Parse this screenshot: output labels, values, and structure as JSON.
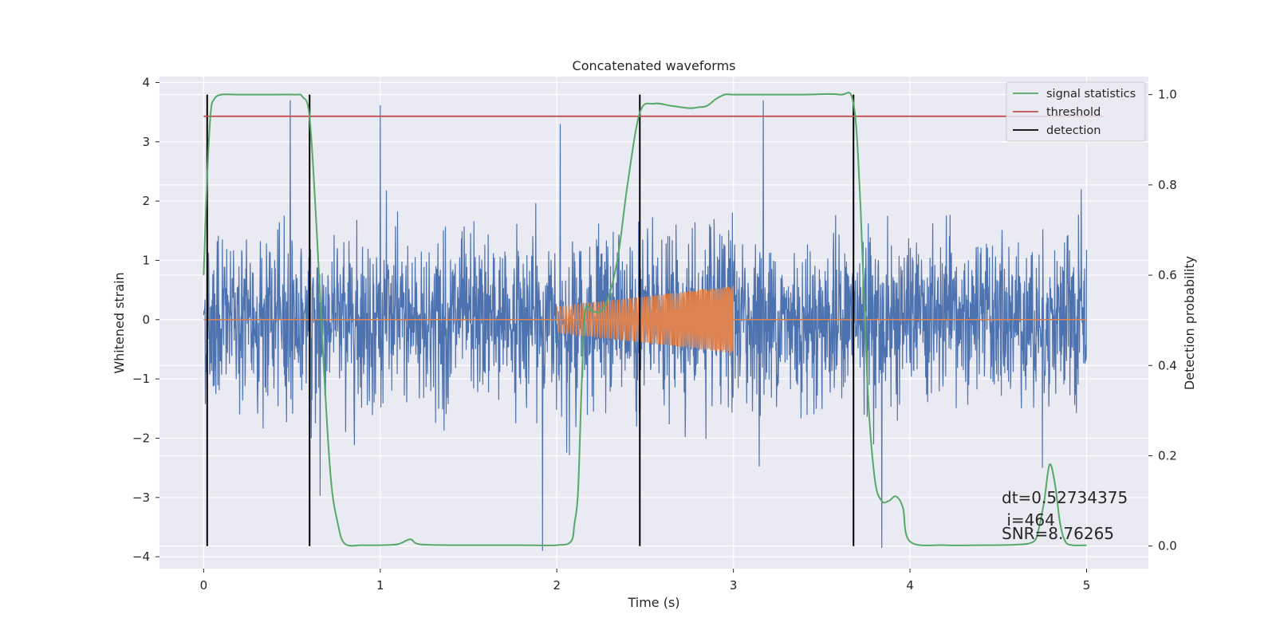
{
  "chart_data": {
    "type": "line",
    "title": "Concatenated waveforms",
    "xlabel": "Time (s)",
    "ylabel": "Whitened strain",
    "ylabel_right": "Detection probability",
    "xlim": [
      -0.25,
      5.35
    ],
    "ylim": [
      -4.2,
      4.1
    ],
    "ylim_right": [
      -0.05,
      1.04
    ],
    "x_ticks": [
      0,
      1,
      2,
      3,
      4,
      5
    ],
    "y_ticks": [
      -4,
      -3,
      -2,
      -1,
      0,
      1,
      2,
      3,
      4
    ],
    "y_ticks_right": [
      0.0,
      0.2,
      0.4,
      0.6,
      0.8,
      1.0
    ],
    "x_tick_labels": [
      "0",
      "1",
      "2",
      "3",
      "4",
      "5"
    ],
    "y_tick_labels": [
      "−4",
      "−3",
      "−2",
      "−1",
      "0",
      "1",
      "2",
      "3",
      "4"
    ],
    "y_tick_labels_right": [
      "0.0",
      "0.2",
      "0.4",
      "0.6",
      "0.8",
      "1.0"
    ],
    "grid": true,
    "legend_position": "top-right",
    "noise_series": {
      "color": "#4c72b0",
      "x_range": [
        0,
        5
      ],
      "typical_amplitude": 1.6,
      "spikes": [
        [
          0.49,
          3.7
        ],
        [
          1.0,
          3.62
        ],
        [
          1.92,
          -3.9
        ],
        [
          2.02,
          3.3
        ],
        [
          3.17,
          3.7
        ],
        [
          0.61,
          -2.0
        ],
        [
          0.66,
          -2.97
        ],
        [
          3.84,
          -3.85
        ],
        [
          4.75,
          -2.5
        ],
        [
          4.97,
          2.2
        ]
      ]
    },
    "injection_series": {
      "color": "#dd8452",
      "x_start": 2.0,
      "x_end": 3.0,
      "amplitude_start": 0.22,
      "amplitude_end": 0.57,
      "baseline_range": [
        0,
        5
      ]
    },
    "series": [
      {
        "name": "signal statistics",
        "axis": "right",
        "color": "#55a868",
        "x": [
          0.0,
          0.02,
          0.04,
          0.06,
          0.1,
          0.2,
          0.4,
          0.52,
          0.56,
          0.6,
          0.64,
          0.68,
          0.72,
          0.76,
          0.8,
          0.9,
          1.0,
          1.1,
          1.17,
          1.22,
          1.4,
          1.6,
          1.8,
          2.0,
          2.08,
          2.1,
          2.12,
          2.14,
          2.16,
          2.2,
          2.25,
          2.3,
          2.35,
          2.4,
          2.47,
          2.55,
          2.65,
          2.75,
          2.8,
          2.85,
          2.9,
          2.95,
          3.0,
          3.2,
          3.4,
          3.6,
          3.68,
          3.72,
          3.76,
          3.8,
          3.84,
          3.88,
          3.92,
          3.96,
          4.0,
          4.2,
          4.4,
          4.6,
          4.7,
          4.73,
          4.76,
          4.79,
          4.82,
          4.85,
          4.88,
          4.92,
          5.0
        ],
        "values": [
          0.6,
          0.82,
          0.96,
          0.99,
          1.0,
          1.0,
          1.0,
          1.0,
          0.995,
          0.95,
          0.7,
          0.4,
          0.15,
          0.05,
          0.005,
          0.002,
          0.002,
          0.004,
          0.015,
          0.004,
          0.002,
          0.002,
          0.002,
          0.002,
          0.01,
          0.05,
          0.12,
          0.35,
          0.52,
          0.52,
          0.52,
          0.56,
          0.65,
          0.8,
          0.96,
          0.98,
          0.975,
          0.97,
          0.972,
          0.975,
          0.99,
          1.0,
          1.0,
          1.0,
          1.0,
          1.0,
          0.98,
          0.75,
          0.35,
          0.15,
          0.1,
          0.1,
          0.11,
          0.085,
          0.01,
          0.002,
          0.002,
          0.003,
          0.01,
          0.04,
          0.1,
          0.18,
          0.14,
          0.05,
          0.01,
          0.002,
          0.002
        ]
      },
      {
        "name": "threshold",
        "axis": "right",
        "color": "#c44e52",
        "x": [
          0,
          5.1
        ],
        "values": [
          0.952,
          0.952
        ]
      },
      {
        "name": "detection",
        "axis": "right",
        "color": "#000000",
        "x": [
          0.02,
          0.6,
          2.47,
          3.68
        ],
        "values": [
          1.0,
          1.0,
          1.0,
          1.0
        ],
        "style": "vertical lines from 0.0 to 1.0"
      }
    ],
    "annotations": [
      "dt=0.52734375",
      " i=464",
      "SNR=8.76265"
    ]
  },
  "colors": {
    "axes_background": "#eaeaf2",
    "grid": "#ffffff",
    "text": "#262626"
  }
}
